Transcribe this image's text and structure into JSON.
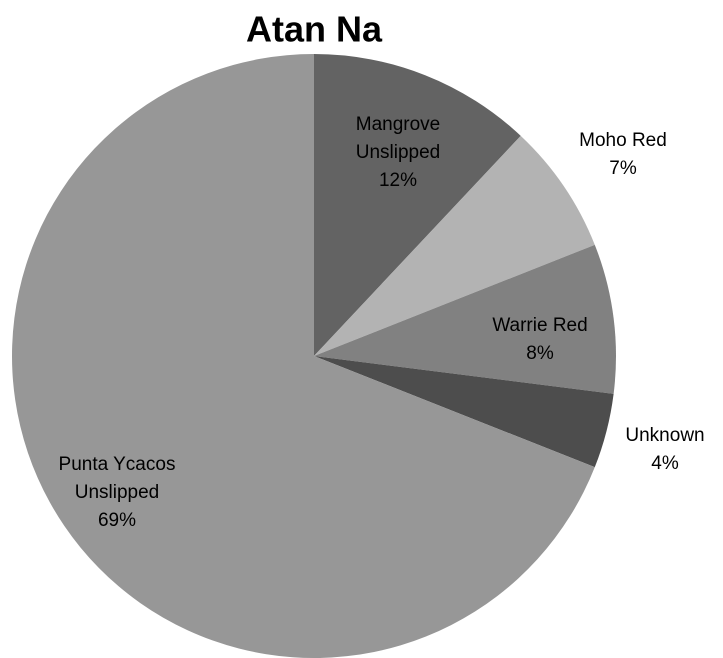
{
  "chart_data": {
    "type": "pie",
    "title": "Atan Na",
    "categories": [
      "Mangrove Unslipped",
      "Moho Red",
      "Warrie Red",
      "Unknown",
      "Punta Ycacos Unslipped"
    ],
    "values": [
      12,
      7,
      8,
      4,
      69
    ],
    "value_labels": [
      "12%",
      "7%",
      "8%",
      "4%",
      "69%"
    ],
    "colors": [
      "#636363",
      "#b3b3b3",
      "#818181",
      "#4d4d4d",
      "#979797"
    ]
  }
}
